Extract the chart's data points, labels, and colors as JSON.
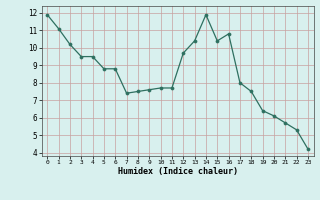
{
  "x": [
    0,
    1,
    2,
    3,
    4,
    5,
    6,
    7,
    8,
    9,
    10,
    11,
    12,
    13,
    14,
    15,
    16,
    17,
    18,
    19,
    20,
    21,
    22,
    23
  ],
  "y": [
    11.9,
    11.1,
    10.2,
    9.5,
    9.5,
    8.8,
    8.8,
    7.4,
    7.5,
    7.6,
    7.7,
    7.7,
    9.7,
    10.4,
    11.9,
    10.4,
    10.8,
    8.0,
    7.5,
    6.4,
    6.1,
    5.7,
    5.3,
    4.2
  ],
  "xlabel": "Humidex (Indice chaleur)",
  "bg_color": "#d8f0ee",
  "grid_color": "#c8a0a0",
  "line_color": "#2e7060",
  "marker_color": "#2e7060",
  "xlim": [
    -0.5,
    23.5
  ],
  "ylim": [
    3.8,
    12.4
  ],
  "yticks": [
    4,
    5,
    6,
    7,
    8,
    9,
    10,
    11,
    12
  ],
  "xticks": [
    0,
    1,
    2,
    3,
    4,
    5,
    6,
    7,
    8,
    9,
    10,
    11,
    12,
    13,
    14,
    15,
    16,
    17,
    18,
    19,
    20,
    21,
    22,
    23
  ]
}
